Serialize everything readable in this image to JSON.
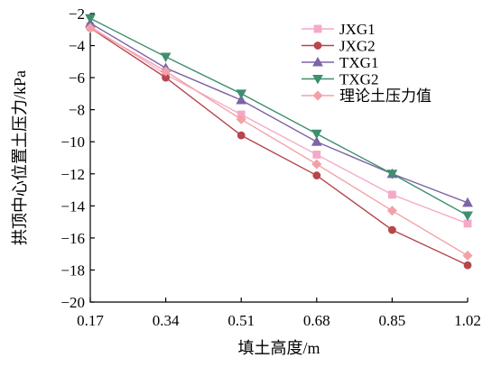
{
  "chart_data": {
    "type": "line",
    "title": "",
    "xlabel": "填土高度/m",
    "ylabel": "拱顶中心位置土压力/kPa",
    "x": [
      0.17,
      0.34,
      0.51,
      0.68,
      0.85,
      1.02
    ],
    "x_tick_labels": [
      "0.17",
      "0.34",
      "0.51",
      "0.68",
      "0.85",
      "1.02"
    ],
    "y_ticks": [
      -2,
      -4,
      -6,
      -8,
      -10,
      -12,
      -14,
      -16,
      -18,
      -20
    ],
    "y_tick_labels": [
      "−2",
      "−4",
      "−6",
      "−8",
      "−10",
      "−12",
      "−14",
      "−16",
      "−18",
      "−20"
    ],
    "xlim": [
      0.17,
      1.02
    ],
    "ylim": [
      -20,
      -2
    ],
    "grid": false,
    "legend_position": "top-right",
    "series": [
      {
        "name": "JXG1",
        "color": "#f4a9c8",
        "marker": "square",
        "values": [
          -2.8,
          -5.8,
          -8.3,
          -10.8,
          -13.3,
          -15.1
        ]
      },
      {
        "name": "JXG2",
        "color": "#b5474d",
        "marker": "circle",
        "values": [
          -2.9,
          -6.0,
          -9.6,
          -12.1,
          -15.5,
          -17.7
        ]
      },
      {
        "name": "TXG1",
        "color": "#7d63a8",
        "marker": "triangle-up",
        "values": [
          -2.6,
          -5.4,
          -7.4,
          -10.0,
          -12.0,
          -13.8
        ]
      },
      {
        "name": "TXG2",
        "color": "#3f8f6e",
        "marker": "triangle-down",
        "values": [
          -2.3,
          -4.7,
          -7.0,
          -9.5,
          -12.0,
          -14.6
        ]
      },
      {
        "name": "理论土压力值",
        "color": "#f2a2a7",
        "marker": "diamond",
        "values": [
          -2.9,
          -5.6,
          -8.6,
          -11.4,
          -14.3,
          -17.1
        ]
      }
    ]
  }
}
